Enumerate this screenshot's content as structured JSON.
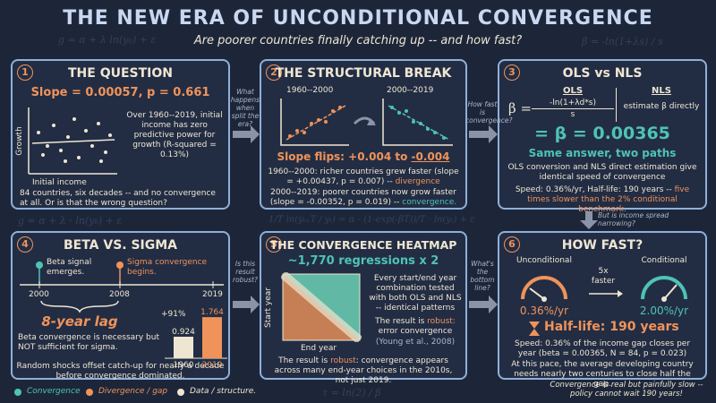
{
  "header": {
    "title": "THE NEW ERA OF UNCONDITIONAL CONVERGENCE",
    "subtitle": "Are poorer countries finally catching up -- and how fast?"
  },
  "background_formulas": [
    "g = α + λ ln(y₀) + ε",
    "β = -ln(1+λs) / s",
    "g = α + λ · ln(y₀) + ε",
    "1/T ln(yₜ₊T / yₜ) = α - (1-exp(-βT))/T · ln(yₜ) + ε",
    "τ = ln(2) / β"
  ],
  "panels": [
    {
      "number": "1",
      "title": "THE QUESTION",
      "stat": "Slope = 0.00057, p = 0.661",
      "axis_y": "Growth",
      "axis_x": "Initial income",
      "note": "Over 1960--2019, initial income has zero predictive power for growth (R-squared = 0.13%)",
      "body": "84 countries, six decades -- and no convergence at all. Or is that the wrong question?"
    },
    {
      "number": "2",
      "title": "THE STRUCTURAL BREAK",
      "periods": [
        "1960--2000",
        "2000--2019"
      ],
      "stat_prefix": "Slope flips: +0.004 to ",
      "stat_value": "-0.004",
      "items": [
        {
          "text": "1960--2000: richer countries grew faster (slope = +0.00437, p = 0.007) -- ",
          "highlight": "divergence"
        },
        {
          "text": "2000--2019: poorer countries now grow faster (slope = -0.00352, p = 0.019) -- ",
          "highlight": "convergence."
        }
      ]
    },
    {
      "number": "3",
      "title": "OLS vs NLS",
      "beta": "β =",
      "ols": "OLS",
      "numerator": "-ln(1+λd*s)",
      "denominator": "s",
      "nls": "NLS",
      "nls_text": "estimate β directly",
      "result": "= β = 0.00365",
      "tagline": "Same answer, two paths",
      "body": "OLS conversion and NLS direct estimation give identical speed of convergence",
      "speed": "Speed: 0.36%/yr, Half-life: 190 years -- ",
      "speed_highlight": "five times slower than the 2% conditional benchmark."
    },
    {
      "number": "4",
      "title": "BETA VS. SIGMA",
      "events": [
        "Beta signal emerges.",
        "Sigma convergence begins."
      ],
      "years": [
        "2000",
        "2008",
        "2019"
      ],
      "lag": "8-year lag",
      "growth": "+91%",
      "bars": [
        {
          "label": "1960",
          "value": 0.924
        },
        {
          "label": "2019",
          "value": 1.764
        }
      ],
      "body1": "Beta convergence is necessary but NOT sufficient for sigma.",
      "body2": "Random shocks offset catch-up for nearly a decade before convergence dominated."
    },
    {
      "number": "5",
      "title": "THE CONVERGENCE HEATMAP",
      "count": "~1,770 regressions x 2",
      "axis_y": "Start year",
      "axis_x": "End year",
      "note": "Every start/end year combination tested with both OLS and NLS -- identical patterns",
      "robust_prefix": "The result is ",
      "robust_highlight": "robust:",
      "robust_rest": " error convergence",
      "citation": "(Young et al., 2008)",
      "body_prefix": "The result is ",
      "body_highlight": "robust",
      "body_rest": ": convergence appears across many end-year choices in the 2010s, not just 2019."
    },
    {
      "number": "6",
      "title": "HOW FAST?",
      "left_label": "Unconditional",
      "ratio": "5x faster",
      "right_label": "Conditional",
      "left_value": "0.36%/yr",
      "right_value": "2.00%/yr",
      "half_life": "Half-life: 190 years",
      "body1": "Speed: 0.36% of the income gap closes per year (beta = 0.00365, N = 84, p = 0.023)",
      "body2": "At this pace, the average developing country needs nearly two centuries to close half the gap."
    }
  ],
  "connectors": [
    "What happens when split the era?",
    "How fast is convergence?",
    "But is income spread narrowing?",
    "Is this result robust?",
    "What's the bottom line?"
  ],
  "legend": [
    "Convergence",
    "Divergence / gap",
    "Data / structure."
  ],
  "footer": "Convergence is real but painfully slow -- policy cannot wait 190 years!"
}
